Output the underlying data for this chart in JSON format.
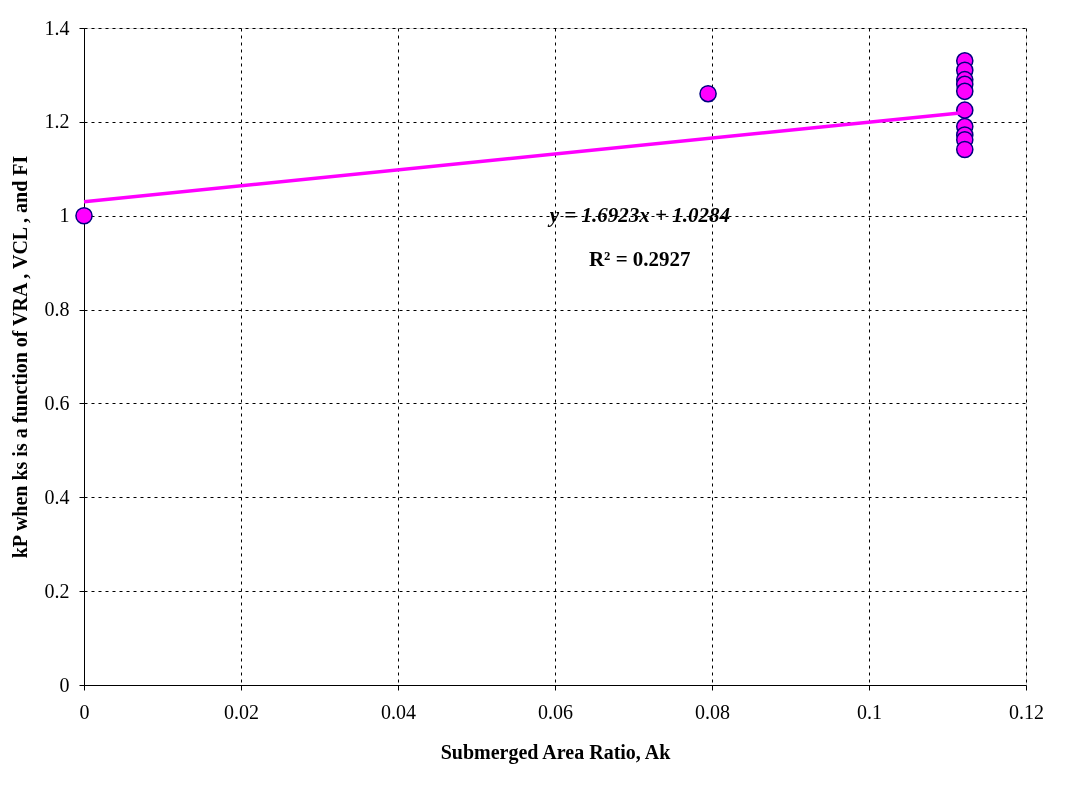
{
  "chart_data": {
    "type": "scatter",
    "xlabel": "Submerged Area Ratio, Ak",
    "ylabel": "kP when ks is a function of VRA , VCL , and FI",
    "xlim": [
      0,
      0.12
    ],
    "xticks": [
      0,
      0.02,
      0.04,
      0.06,
      0.08,
      0.1,
      0.12
    ],
    "ylim": [
      0,
      1.4
    ],
    "yticks": [
      0,
      0.2,
      0.4,
      0.6,
      0.8,
      1,
      1.2,
      1.4
    ],
    "grid": true,
    "series": [
      {
        "color": "#ff00ff",
        "marker": "circle",
        "x": [
          0,
          0.0795,
          0.1122,
          0.1122,
          0.1122,
          0.1122,
          0.1122,
          0.1122,
          0.1122,
          0.1122,
          0.1122,
          0.1122
        ],
        "values": [
          1,
          1.26,
          1.33,
          1.31,
          1.29,
          1.28,
          1.265,
          1.225,
          1.19,
          1.172,
          1.162,
          1.141
        ]
      },
      {
        "type": "line",
        "color": "#ff00ff",
        "marker": "none",
        "line_style": "solid",
        "x": [
          0,
          0.1122
        ],
        "values": [
          1.03,
          1.22
        ]
      }
    ],
    "annotations": [
      "y = 1.6923x + 1.0284",
      "R² = 0.2927"
    ]
  }
}
